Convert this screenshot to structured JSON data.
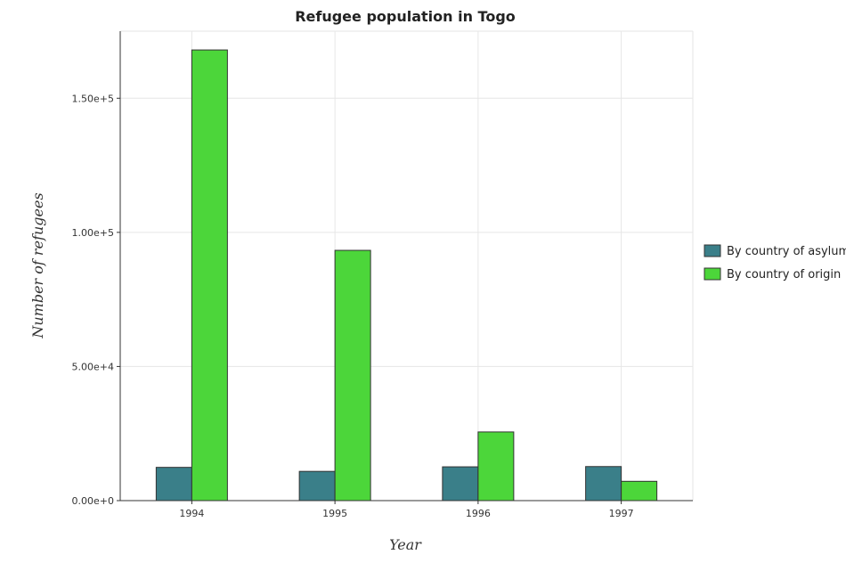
{
  "chart_data": {
    "type": "bar",
    "title": "Refugee population in Togo",
    "xlabel": "Year",
    "ylabel": "Number of refugees",
    "categories": [
      "1994",
      "1995",
      "1996",
      "1997"
    ],
    "series": [
      {
        "name": "By country of asylum",
        "color": "#3a7f89",
        "values": [
          12400,
          10900,
          12600,
          12700
        ]
      },
      {
        "name": "By country of origin",
        "color": "#4cd63a",
        "values": [
          168000,
          93300,
          25600,
          7200
        ]
      }
    ],
    "ylim": [
      0,
      175000
    ],
    "yticks": [
      0,
      50000,
      100000,
      150000
    ],
    "ytick_labels": [
      "0.00e+0",
      "5.00e+4",
      "1.00e+5",
      "1.50e+5"
    ],
    "grid": true,
    "legend_position": "right"
  }
}
